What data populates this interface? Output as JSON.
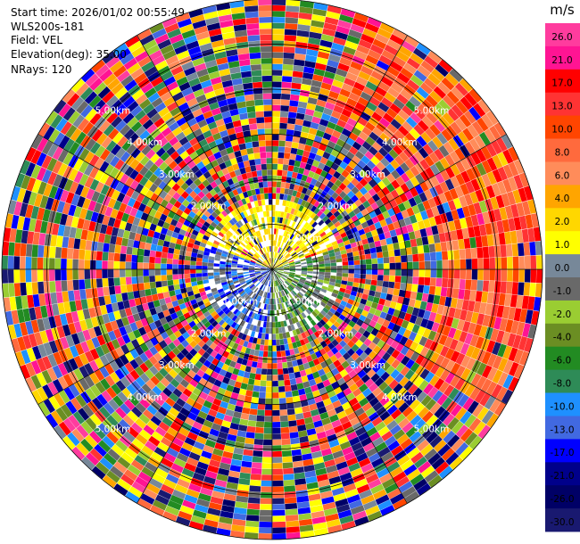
{
  "header": {
    "start_time": "Start time: 2026/01/02 00:55:49",
    "instrument": "WLS200s-181",
    "field": "Field: VEL",
    "elevation": "Elevation(deg): 35.00",
    "nrays": "NRays: 120"
  },
  "chart_data": {
    "type": "heatmap",
    "projection": "polar-ppi",
    "field": "VEL",
    "units": "m/s",
    "elevation_deg": 35.0,
    "n_rays": 120,
    "max_range_km": 6.0,
    "range_rings_km": [
      1,
      2,
      3,
      4,
      5
    ],
    "ring_labels": [
      "1.00km",
      "2.00km",
      "3.00km",
      "4.00km",
      "5.00km"
    ],
    "grid": true,
    "legend_position": "right",
    "colorbar": {
      "unit_label": "m/s",
      "ticks": [
        "26.0",
        "21.0",
        "17.0",
        "13.0",
        "10.0",
        "8.0",
        "6.0",
        "4.0",
        "2.0",
        "1.0",
        "0.0",
        "-1.0",
        "-2.0",
        "-4.0",
        "-6.0",
        "-8.0",
        "-10.0",
        "-13.0",
        "-17.0",
        "-21.0",
        "-26.0",
        "-30.0"
      ],
      "colors": [
        "#ff3c9e",
        "#ff1493",
        "#ff0000",
        "#ff3333",
        "#ff4500",
        "#ff6a3d",
        "#ff8c5a",
        "#ffa500",
        "#ffd700",
        "#ffff00",
        "#778899",
        "#696969",
        "#9acd32",
        "#6b8e23",
        "#228b22",
        "#2e8b57",
        "#1e90ff",
        "#4169e1",
        "#0000ff",
        "#00008b",
        "#000066",
        "#191970"
      ]
    }
  }
}
